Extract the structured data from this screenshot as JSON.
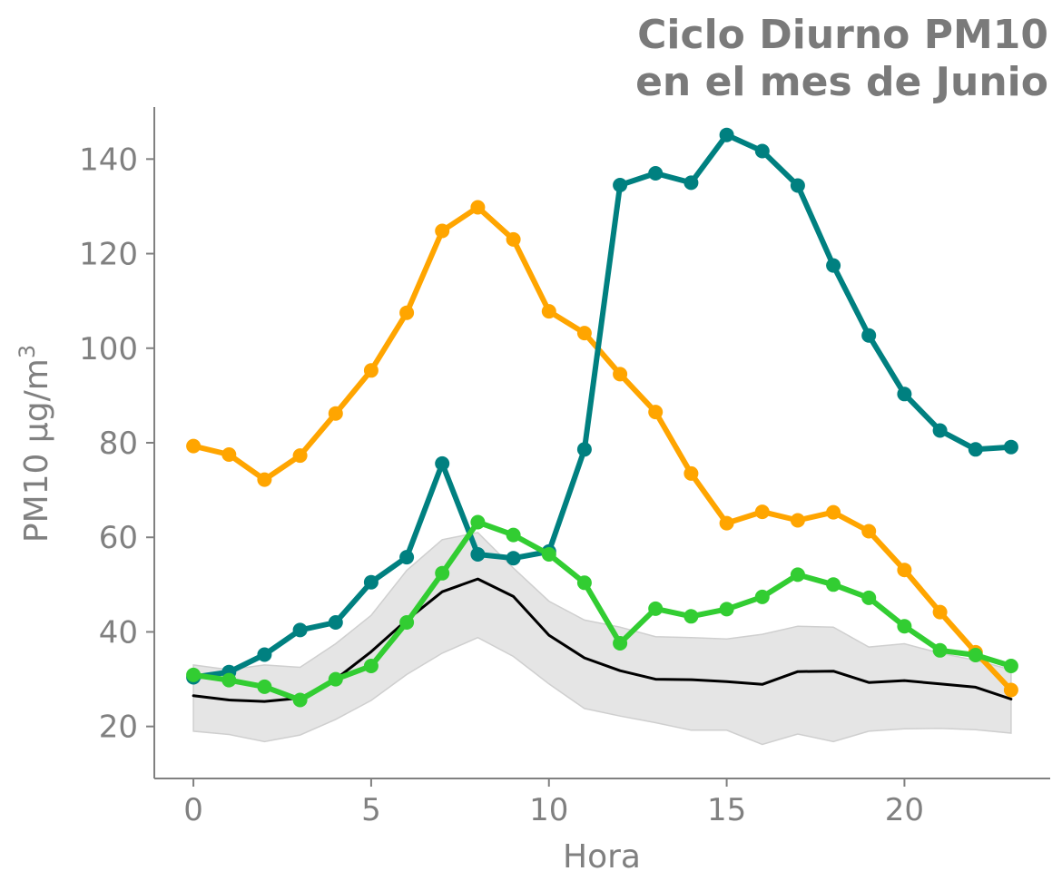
{
  "chart_data": {
    "type": "line",
    "title": [
      "Ciclo Diurno PM10",
      "en el mes de Junio"
    ],
    "xlabel": "Hora",
    "ylabel": "PM10 μg/m",
    "ylabel_sup": "3",
    "xlim": [
      -1.1,
      24.1
    ],
    "ylim": [
      9,
      151
    ],
    "xticks": [
      0,
      5,
      10,
      15,
      20
    ],
    "yticks": [
      20,
      40,
      60,
      80,
      100,
      120,
      140
    ],
    "grid": false,
    "x": [
      0,
      1,
      2,
      3,
      4,
      5,
      6,
      7,
      8,
      9,
      10,
      11,
      12,
      13,
      14,
      15,
      16,
      17,
      18,
      19,
      20,
      21,
      22,
      23
    ],
    "band": {
      "lower": [
        19,
        18.3,
        16.8,
        18.2,
        21.5,
        25.5,
        31,
        35.5,
        38.8,
        34.8,
        29,
        23.8,
        22.2,
        20.8,
        19.2,
        19.2,
        16.2,
        18.4,
        16.8,
        19,
        19.5,
        19.6,
        19.3,
        18.6
      ],
      "upper": [
        33,
        32,
        33,
        32.5,
        37.5,
        43.5,
        53,
        59.5,
        61,
        53.5,
        46.5,
        42.5,
        41,
        39,
        38.8,
        38.5,
        39.5,
        41.2,
        41,
        36.8,
        37.5,
        35.5,
        34,
        32
      ],
      "color": "#e5e5e5"
    },
    "series": [
      {
        "color": "#000000",
        "markers": false,
        "values": [
          26.5,
          25.6,
          25.3,
          26,
          30,
          35.8,
          42.5,
          48.5,
          51.2,
          47.5,
          39.3,
          34.5,
          31.8,
          30,
          29.9,
          29.5,
          28.9,
          31.6,
          31.7,
          29.3,
          29.7,
          29,
          28.3,
          25.8
        ]
      },
      {
        "color": "#ffa500",
        "markers": true,
        "values": [
          79.3,
          77.5,
          72.2,
          77.3,
          86.2,
          95.3,
          107.5,
          124.8,
          129.8,
          123,
          107.8,
          103.2,
          94.5,
          86.5,
          73.5,
          63,
          65.4,
          63.6,
          65.3,
          61.3,
          53.1,
          44.2,
          35.7,
          27.7
        ]
      },
      {
        "color": "#008080",
        "markers": true,
        "values": [
          30.4,
          31.5,
          35.2,
          40.4,
          42,
          50.5,
          55.8,
          75.6,
          56.4,
          55.6,
          57,
          78.6,
          134.5,
          137,
          135,
          145.1,
          141.7,
          134.4,
          117.5,
          102.7,
          90.3,
          82.6,
          78.6,
          79.1
        ]
      },
      {
        "color": "#32cd32",
        "markers": true,
        "values": [
          30.9,
          29.8,
          28.4,
          25.6,
          30,
          32.8,
          42,
          52.4,
          63.2,
          60.5,
          56.4,
          50.4,
          37.6,
          44.9,
          43.3,
          44.8,
          47.4,
          52.1,
          50,
          47.2,
          41.2,
          36.1,
          35.1,
          32.8
        ]
      }
    ]
  }
}
